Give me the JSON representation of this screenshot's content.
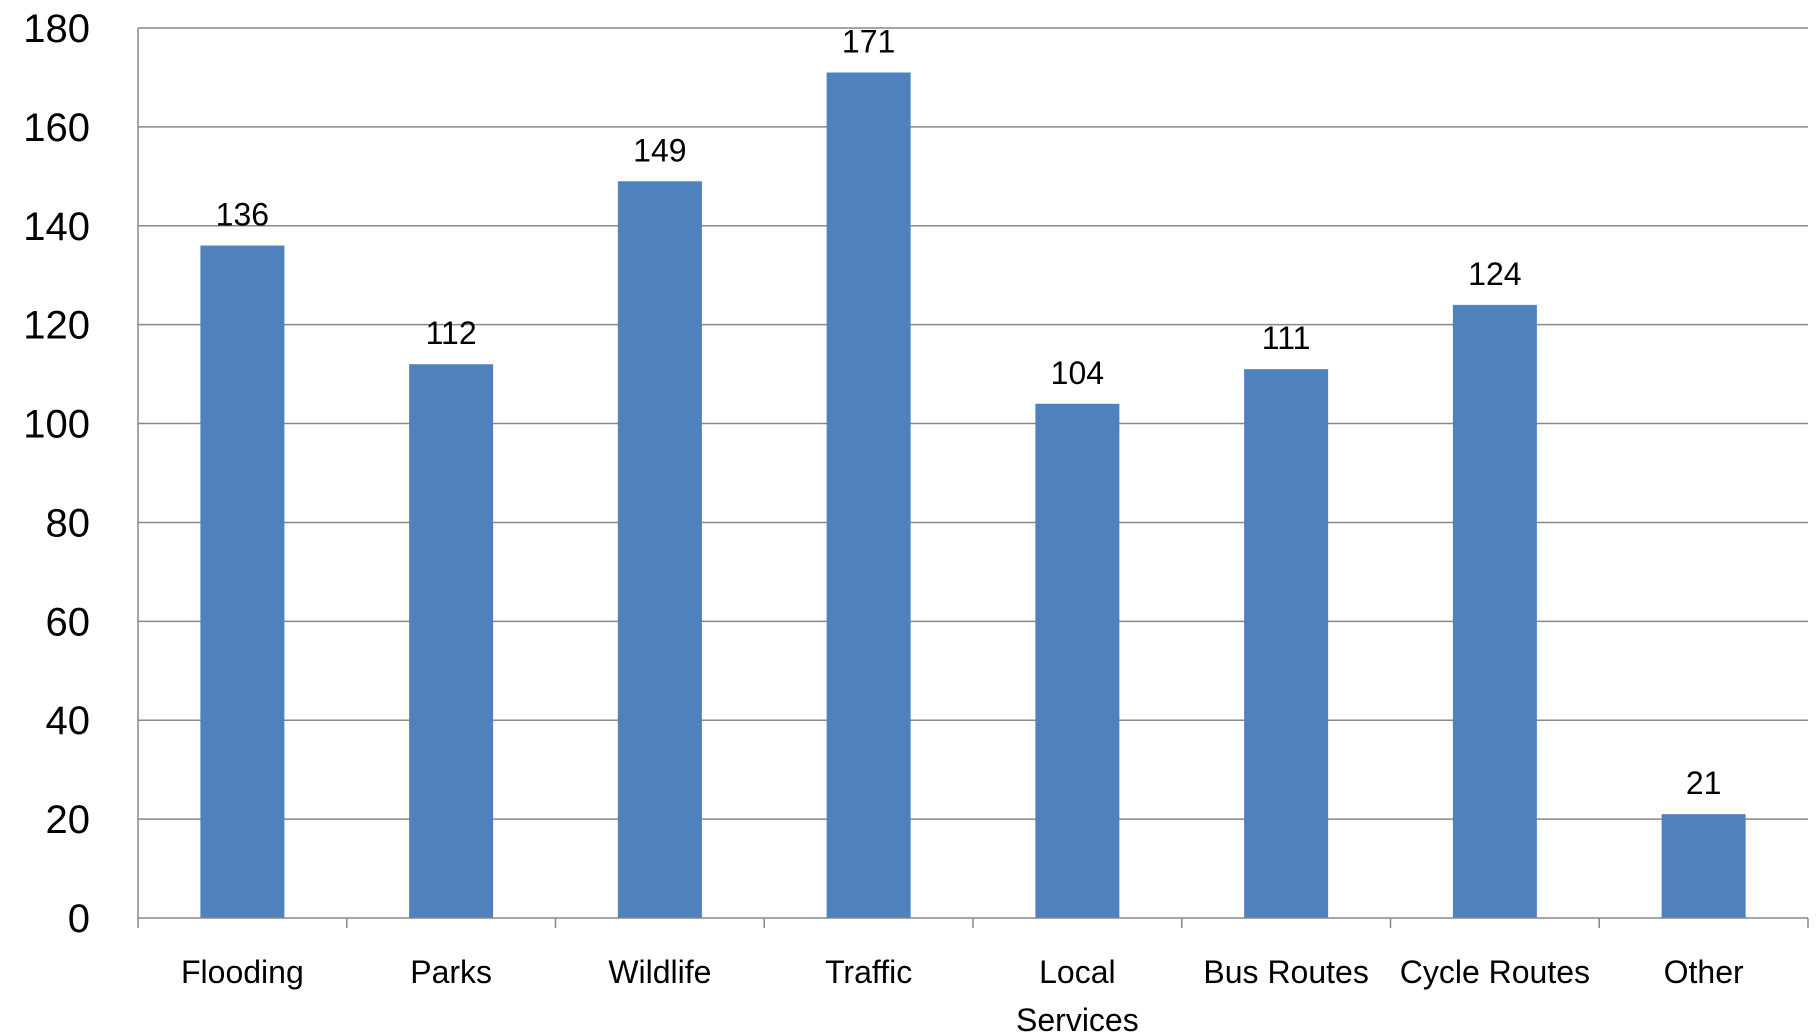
{
  "chart_data": {
    "type": "bar",
    "title": "",
    "xlabel": "",
    "ylabel": "",
    "categories": [
      "Flooding",
      "Parks",
      "Wildlife",
      "Traffic",
      "Local Services",
      "Bus Routes",
      "Cycle Routes",
      "Other"
    ],
    "category_label_lines": [
      [
        "Flooding"
      ],
      [
        "Parks"
      ],
      [
        "Wildlife"
      ],
      [
        "Traffic"
      ],
      [
        "Local",
        "Services"
      ],
      [
        "Bus Routes"
      ],
      [
        "Cycle Routes"
      ],
      [
        "Other"
      ]
    ],
    "values": [
      136,
      112,
      149,
      171,
      104,
      111,
      124,
      21
    ],
    "data_labels": [
      "136",
      "112",
      "149",
      "171",
      "104",
      "111",
      "124",
      "21"
    ],
    "ylim": [
      0,
      180
    ],
    "y_ticks": [
      0,
      20,
      40,
      60,
      80,
      100,
      120,
      140,
      160,
      180
    ],
    "y_tick_labels": [
      "0",
      "20",
      "40",
      "60",
      "80",
      "100",
      "120",
      "140",
      "160",
      "180"
    ],
    "grid": true,
    "legend": "none",
    "colors": {
      "bar": "#4f81bd",
      "grid": "#888888",
      "text": "#000000"
    }
  }
}
